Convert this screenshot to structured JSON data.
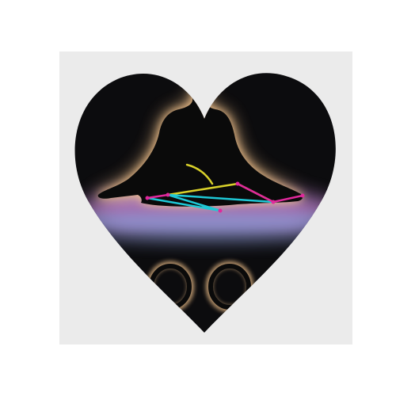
{
  "scene": {
    "background_color": "#ffffff",
    "card_color": "#ebebeb",
    "heart_color": "#0c0c0e",
    "glow_colors": [
      "#f2c28c",
      "#b27cc4",
      "#8b9ad6"
    ],
    "silhouette_color": "#0a0a0a",
    "skeleton_colors": {
      "left_leg": "#1ec8d6",
      "right_leg": "#e0289c",
      "torso": "#d8d02a"
    }
  }
}
